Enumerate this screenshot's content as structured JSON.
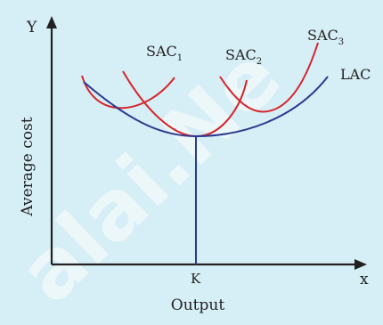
{
  "diagram": {
    "axes": {
      "y_label": "Y",
      "x_label": "x",
      "y_title": "Average cost",
      "x_title": "Output",
      "point_label": "K"
    },
    "curves": {
      "sac1": {
        "base": "SAC",
        "sub": "1",
        "color": "#d6242a"
      },
      "sac2": {
        "base": "SAC",
        "sub": "2",
        "color": "#d6242a"
      },
      "sac3": {
        "base": "SAC",
        "sub": "3",
        "color": "#d6242a"
      },
      "lac": {
        "label": "LAC",
        "color": "#2b3a8f"
      }
    },
    "watermark": "alai.Ne"
  }
}
